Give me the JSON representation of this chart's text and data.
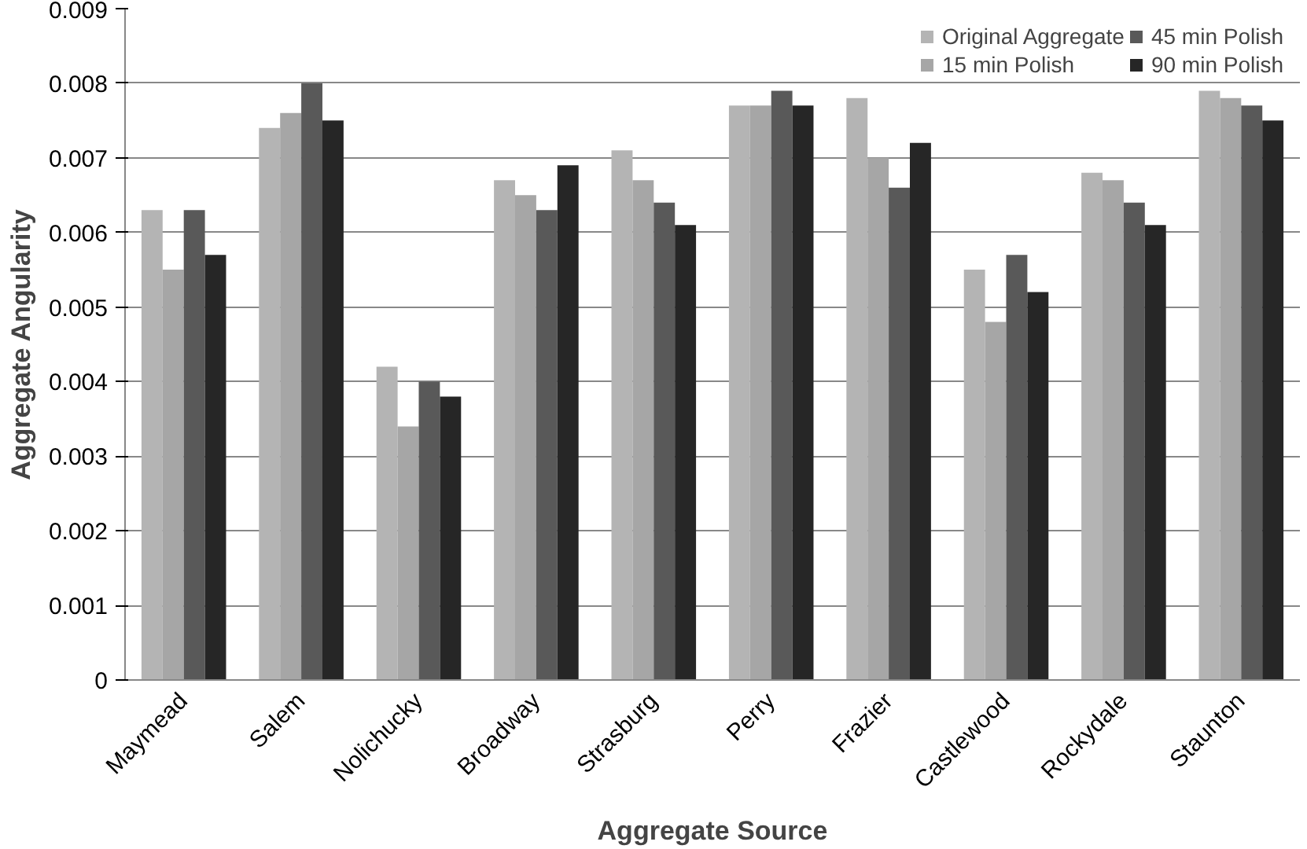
{
  "chart_data": {
    "type": "bar",
    "xlabel": "Aggregate Source",
    "ylabel": "Aggregate Angularity",
    "categories": [
      "Maymead",
      "Salem",
      "Nolichucky",
      "Broadway",
      "Strasburg",
      "Perry",
      "Frazier",
      "Castlewood",
      "Rockydale",
      "Staunton"
    ],
    "series": [
      {
        "name": "Original Aggregate",
        "color": "#b4b4b4",
        "values": [
          0.0063,
          0.0074,
          0.0042,
          0.0067,
          0.0071,
          0.0077,
          0.0078,
          0.0055,
          0.0068,
          0.0079
        ]
      },
      {
        "name": "15 min Polish",
        "color": "#a6a6a6",
        "values": [
          0.0055,
          0.0076,
          0.0034,
          0.0065,
          0.0067,
          0.0077,
          0.007,
          0.0048,
          0.0067,
          0.0078
        ]
      },
      {
        "name": "45 min Polish",
        "color": "#595959",
        "values": [
          0.0063,
          0.008,
          0.004,
          0.0063,
          0.0064,
          0.0079,
          0.0066,
          0.0057,
          0.0064,
          0.0077
        ]
      },
      {
        "name": "90 min Polish",
        "color": "#262626",
        "values": [
          0.0057,
          0.0075,
          0.0038,
          0.0069,
          0.0061,
          0.0077,
          0.0072,
          0.0052,
          0.0061,
          0.0075
        ]
      }
    ],
    "ylim": [
      0,
      0.009
    ],
    "yticks": [
      0,
      0.001,
      0.002,
      0.003,
      0.004,
      0.005,
      0.006,
      0.007,
      0.008,
      0.009
    ],
    "grid": "y",
    "legend": "top right"
  }
}
